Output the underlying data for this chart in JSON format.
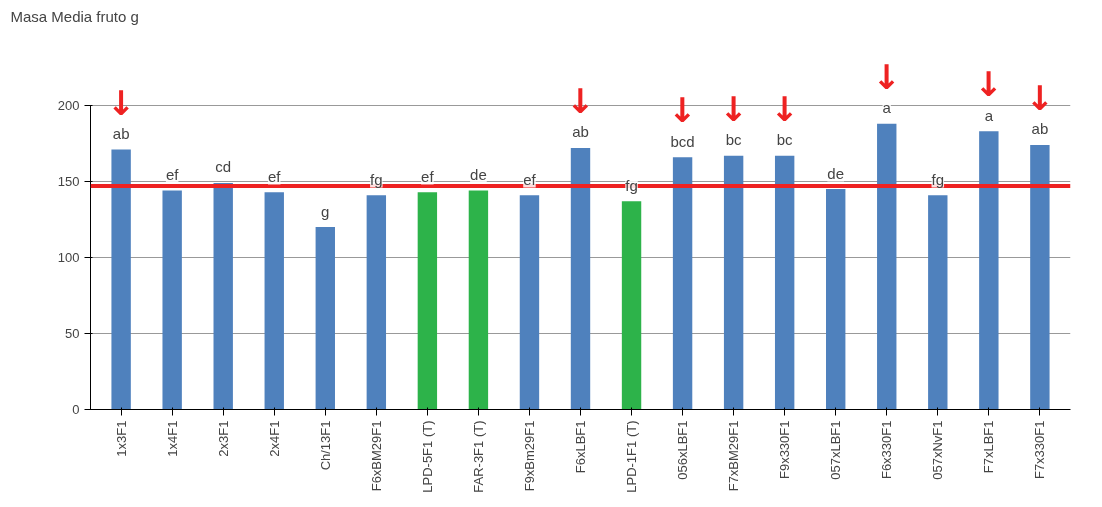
{
  "chart_data": {
    "type": "bar",
    "title": "Masa Media fruto g",
    "categories": [
      "1x3F1",
      "1x4F1",
      "2x3F1",
      "2x4F1",
      "Ch/13F1",
      "F6xBM29F1",
      "LPD-5F1 (T)",
      "FAR-3F1 (T)",
      "F9xBm29F1",
      "F6xLBF1",
      "LPD-1F1 (T)",
      "056xLBF1",
      "F7xBM29F1",
      "F9x330F1",
      "057xLBF1",
      "F6x330F1",
      "057xNvF1",
      "F7xLBF1",
      "F7x330F1"
    ],
    "values": [
      171,
      144,
      149,
      143,
      120,
      141,
      143,
      144,
      141,
      172,
      137,
      166,
      167,
      167,
      145,
      188,
      141,
      183,
      174
    ],
    "value_labels": [
      "ab",
      "ef",
      "cd",
      "ef",
      "g",
      "fg",
      "ef",
      "de",
      "ef",
      "ab",
      "fg",
      "bcd",
      "bc",
      "bc",
      "de",
      "a",
      "fg",
      "a",
      "ab"
    ],
    "colors": [
      "#4f81bd",
      "#4f81bd",
      "#4f81bd",
      "#4f81bd",
      "#4f81bd",
      "#4f81bd",
      "#2db34a",
      "#2db34a",
      "#4f81bd",
      "#4f81bd",
      "#2db34a",
      "#4f81bd",
      "#4f81bd",
      "#4f81bd",
      "#4f81bd",
      "#4f81bd",
      "#4f81bd",
      "#4f81bd",
      "#4f81bd"
    ],
    "ylim": [
      0,
      200
    ],
    "yticks": [
      0,
      50,
      100,
      150,
      200
    ],
    "grid": "y",
    "ref_lines": [
      {
        "axis": "y",
        "value": 147,
        "label": null,
        "color": "#ee2222"
      }
    ],
    "annotations": [
      {
        "text": "↓",
        "x": "1x3F1",
        "y": 171
      },
      {
        "text": "↓",
        "x": "F6xLBF1",
        "y": 172
      },
      {
        "text": "↓",
        "x": "056xLBF1",
        "y": 166
      },
      {
        "text": "↓",
        "x": "F7xBM29F1",
        "y": 167
      },
      {
        "text": "↓",
        "x": "F9x330F1",
        "y": 167
      },
      {
        "text": "↓",
        "x": "F6x330F1",
        "y": 188
      },
      {
        "text": "↓",
        "x": "F7xLBF1",
        "y": 183
      },
      {
        "text": "↓",
        "x": "F7x330F1",
        "y": 174
      }
    ]
  }
}
